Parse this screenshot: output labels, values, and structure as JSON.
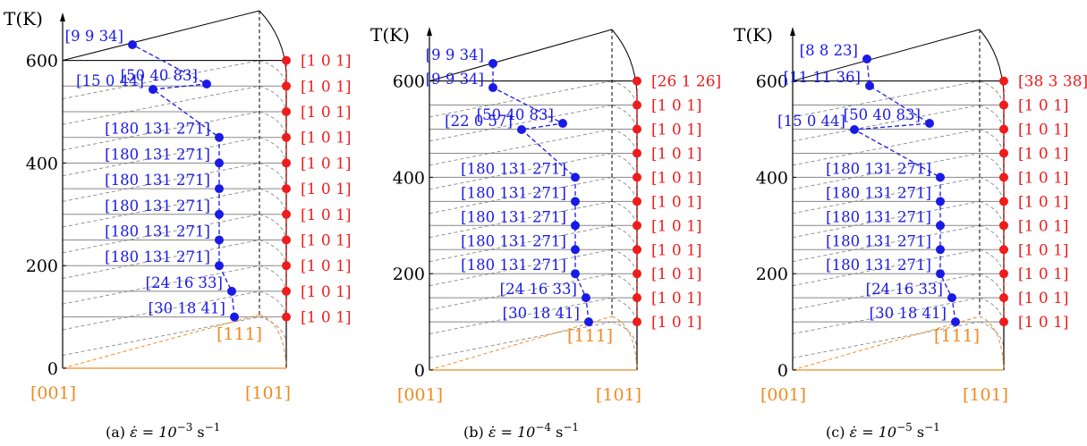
{
  "colors": {
    "red": "#ee1c1c",
    "blue": "#1a1ae6",
    "orange": "#f08a1e",
    "axis": "#000000",
    "grid": "#888888"
  },
  "chart_data": [
    {
      "type": "scatter",
      "panel_label": "(a)",
      "caption_prefix": "ε̇ = 10",
      "caption_exp": "−3",
      "caption_unit": " s",
      "caption_unit_exp": "−1",
      "ylabel": "T(K)",
      "y_ticks": [
        0,
        200,
        400,
        600
      ],
      "ylim": [
        0,
        650
      ],
      "corner_labels": {
        "bottom_left": "[001]",
        "bottom_right": "[101]",
        "mid": "[111]"
      },
      "temperatures": [
        100,
        150,
        200,
        250,
        300,
        350,
        400,
        450,
        500,
        550,
        600
      ],
      "red_labels": [
        "[1 0 1]",
        "[1 0 1]",
        "[1 0 1]",
        "[1 0 1]",
        "[1 0 1]",
        "[1 0 1]",
        "[1 0 1]",
        "[1 0 1]",
        "[1 0 1]",
        "[1 0 1]",
        "[1 0 1]"
      ],
      "blue_labels": [
        "[30 18 41]",
        "[24 16 33]",
        "[180 131 271]",
        "[180 131 271]",
        "[180 131 271]",
        "[180 131 271]",
        "[180 131 271]",
        "[180 131 271]",
        "[15 0 44]",
        "[50 40 83]",
        "[9 9 34]"
      ]
    },
    {
      "type": "scatter",
      "panel_label": "(b)",
      "caption_prefix": "ε̇ = 10",
      "caption_exp": "−4",
      "caption_unit": " s",
      "caption_unit_exp": "−1",
      "ylabel": "T(K)",
      "y_ticks": [
        0,
        200,
        400,
        600
      ],
      "ylim": [
        0,
        650
      ],
      "corner_labels": {
        "bottom_left": "[001]",
        "bottom_right": "[101]",
        "mid": "[111]"
      },
      "temperatures": [
        100,
        150,
        200,
        250,
        300,
        350,
        400,
        450,
        500,
        550,
        600
      ],
      "red_labels": [
        "[1 0 1]",
        "[1 0 1]",
        "[1 0 1]",
        "[1 0 1]",
        "[1 0 1]",
        "[1 0 1]",
        "[1 0 1]",
        "[1 0 1]",
        "[1 0 1]",
        "[1 0 1]",
        "[26 1 26]"
      ],
      "blue_labels": [
        "[30 18 41]",
        "[24 16 33]",
        "[180 131 271]",
        "[180 131 271]",
        "[180 131 271]",
        "[180 131 271]",
        "[180 131 271]",
        "[22 0 57]",
        "[50 40 83]",
        "[9 9 34]",
        "[9 9 34]"
      ]
    },
    {
      "type": "scatter",
      "panel_label": "(c)",
      "caption_prefix": "ε̇ = 10",
      "caption_exp": "−5",
      "caption_unit": " s",
      "caption_unit_exp": "−1",
      "ylabel": "T(K)",
      "y_ticks": [
        0,
        200,
        400,
        600
      ],
      "ylim": [
        0,
        650
      ],
      "corner_labels": {
        "bottom_left": "[001]",
        "bottom_right": "[101]",
        "mid": "[111]"
      },
      "temperatures": [
        100,
        150,
        200,
        250,
        300,
        350,
        400,
        450,
        500,
        550,
        600
      ],
      "red_labels": [
        "[1 0 1]",
        "[1 0 1]",
        "[1 0 1]",
        "[1 0 1]",
        "[1 0 1]",
        "[1 0 1]",
        "[1 0 1]",
        "[1 0 1]",
        "[1 0 1]",
        "[1 0 1]",
        "[38 3 38]"
      ],
      "blue_labels": [
        "[30 18 41]",
        "[24 16 33]",
        "[180 131 271]",
        "[180 131 271]",
        "[180 131 271]",
        "[180 131 271]",
        "[180 131 271]",
        "[15 0 44]",
        "[50 40 83]",
        "[11 11 36]",
        "[8 8 23]"
      ]
    }
  ]
}
